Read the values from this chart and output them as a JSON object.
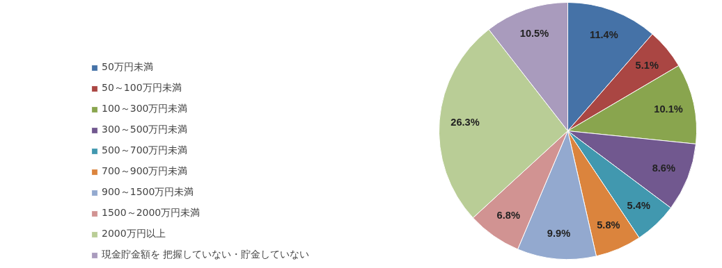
{
  "chart_data": {
    "type": "pie",
    "categories": [
      "50万円未満",
      "50～100万円未満",
      "100～300万円未満",
      "300～500万円未満",
      "500～700万円未満",
      "700～900万円未満",
      "900～1500万円未満",
      "1500～2000万円未満",
      "2000万円以上",
      "現金貯金額を 把握していない・貯金していない"
    ],
    "values": [
      11.4,
      5.1,
      10.1,
      8.6,
      5.4,
      5.8,
      9.9,
      6.8,
      26.3,
      10.5
    ],
    "value_labels": [
      "11.4%",
      "5.1%",
      "10.1%",
      "8.6%",
      "5.4%",
      "5.8%",
      "9.9%",
      "6.8%",
      "26.3%",
      "10.5%"
    ],
    "colors": [
      "#4572a7",
      "#aa4643",
      "#89a54e",
      "#71588f",
      "#4198af",
      "#db843d",
      "#93a9cf",
      "#d19392",
      "#b9cd96",
      "#a99bbd"
    ],
    "legend": "left"
  }
}
